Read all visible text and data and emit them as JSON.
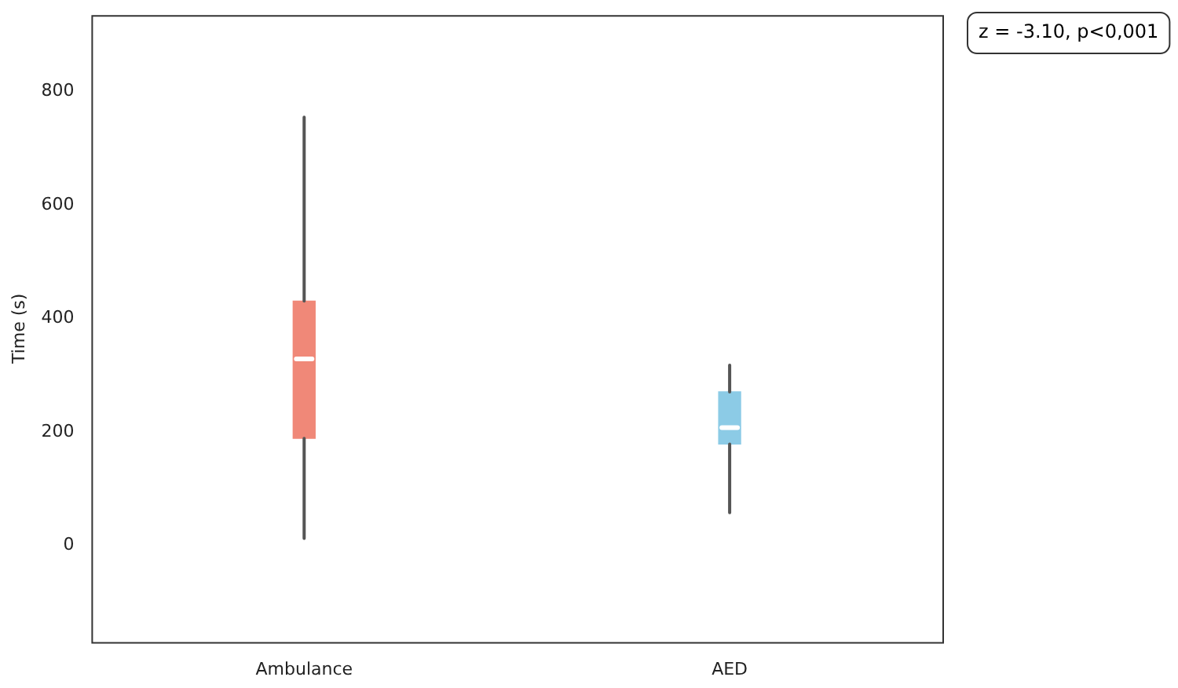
{
  "chart_data": {
    "type": "box",
    "ylabel": "Time (s)",
    "categories": [
      "Ambulance",
      "AED"
    ],
    "boxes": [
      {
        "low": 13,
        "q1": 189,
        "median": 329,
        "q3": 431,
        "high": 755
      },
      {
        "low": 58,
        "q1": 179,
        "median": 208,
        "q3": 271,
        "high": 318
      }
    ],
    "colors": [
      "#f08878",
      "#8ccbe6"
    ],
    "ylim": [
      -170,
      935
    ],
    "yticks": [
      0,
      200,
      400,
      600,
      800
    ],
    "grid": false,
    "legend": false,
    "annotations": [
      "z = -3.10, p<0,001"
    ]
  }
}
